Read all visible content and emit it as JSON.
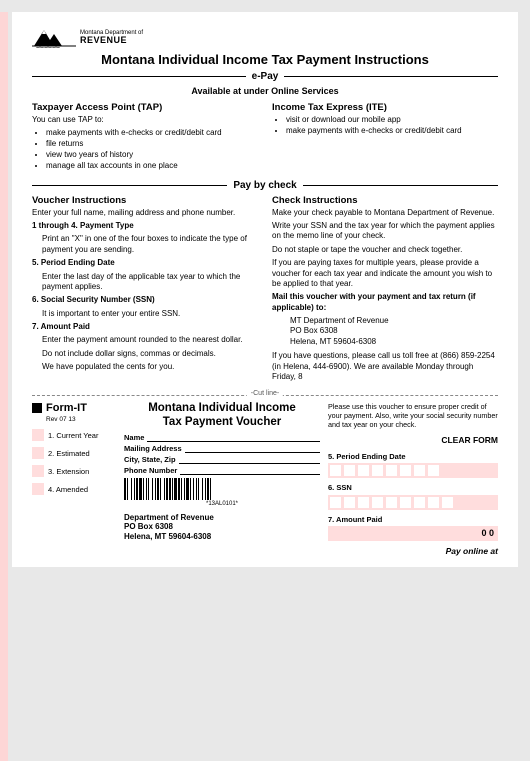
{
  "logo": {
    "dept_line": "Montana Department of",
    "revenue": "REVENUE"
  },
  "title": "Montana Individual Income Tax Payment Instructions",
  "section_epay": "e-Pay",
  "avail": "Available at  under Online Services",
  "tap": {
    "heading": "Taxpayer Access Point (TAP)",
    "lead": "You can use TAP to:",
    "items": [
      "make payments with e-checks or credit/debit card",
      "file returns",
      "view two years of history",
      "manage all tax accounts in one place"
    ]
  },
  "ite": {
    "heading": "Income Tax Express (ITE)",
    "items": [
      "visit  or download our mobile app",
      "make payments with e-checks or credit/debit card"
    ]
  },
  "section_check": "Pay by check",
  "vinstr": {
    "heading": "Voucher Instructions",
    "intro": "Enter your full name, mailing address and phone number.",
    "p1_h": "1 through 4. Payment Type",
    "p1": "Print an \"X\" in one of the four boxes to indicate the type of payment you are sending.",
    "p5_h": "5. Period Ending Date",
    "p5": "Enter the last day of the applicable tax year to which the payment applies.",
    "p6_h": "6. Social Security Number (SSN)",
    "p6": "It is important to enter your entire SSN.",
    "p7_h": "7. Amount Paid",
    "p7a": "Enter the payment amount rounded to the nearest dollar.",
    "p7b": "Do not include dollar signs, commas or decimals.",
    "p7c": "We have populated the cents for you."
  },
  "cinstr": {
    "heading": "Check Instructions",
    "p1": "Make your check payable to Montana Department of Revenue.",
    "p2": "Write your SSN and the tax year for which the payment applies on the memo line of your check.",
    "p3": "Do not staple or tape the voucher and check together.",
    "p4": "If you are paying taxes for multiple years, please provide a voucher for each tax year and indicate the amount you wish to be applied to that year.",
    "mail_h": "Mail this voucher with your payment and tax return (if applicable) to:",
    "addr1": "MT Department of Revenue",
    "addr2": "PO Box 6308",
    "addr3": "Helena, MT 59604-6308",
    "help": "If you have questions, please call us toll free at (866) 859-2254 (in Helena, 444-6900). We are available Monday through Friday, 8"
  },
  "cut": "-Cut line-",
  "voucher": {
    "form": "Form-IT",
    "rev": "Rev 07 13",
    "types": [
      "1. Current Year",
      "2.   Estimated",
      "3.  Extension",
      "4.  Amended"
    ],
    "title1": "Montana Individual Income",
    "title2": "Tax Payment Voucher",
    "fields": {
      "name": "Name",
      "mail": "Mailing Address",
      "csz": "City, State, Zip",
      "phone": "Phone Number"
    },
    "barcode_txt": "*13AL0101*",
    "dept1": "Department of Revenue",
    "dept2": "PO Box 6308",
    "dept3": "Helena, MT 59604-6308",
    "note": "Please use this voucher to ensure proper credit of your payment. Also, write your social security number and tax year on your check.",
    "clear": "CLEAR FORM",
    "r5": "5. Period Ending Date",
    "r6": "6.   SSN",
    "r7": "7. Amount Paid",
    "amt00": "0 0",
    "payonline": "Pay online at"
  }
}
